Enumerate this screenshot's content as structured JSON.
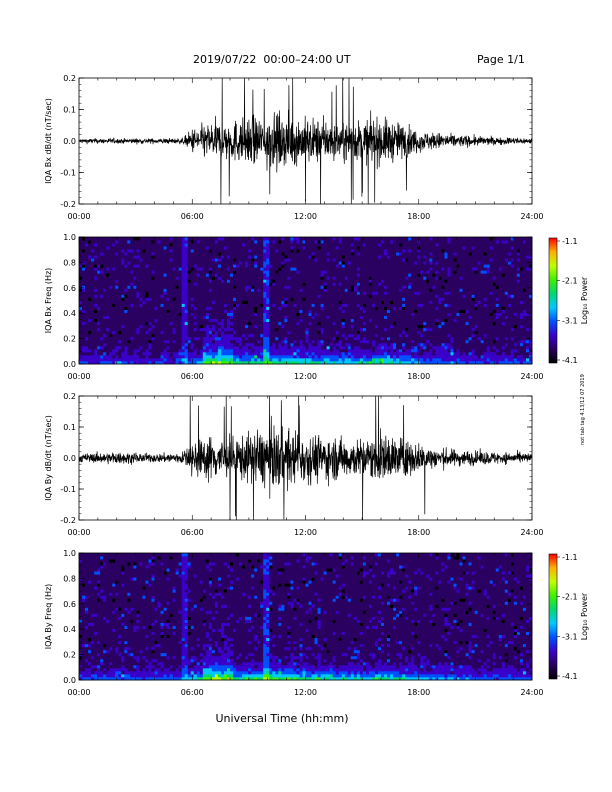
{
  "header": {
    "title": "2019/07/22  00:00–24:00 UT",
    "page": "Page 1/1"
  },
  "footer_xlabel": "Universal Time (hh:mm)",
  "side_note": "not tab tag 4.13/12 07 2019",
  "time_ticks": [
    "00:00",
    "06:00",
    "12:00",
    "18:00",
    "24:00"
  ],
  "colorbar": {
    "label": "Log₁₀ Power",
    "ticks": [
      "-1.1",
      "-2.1",
      "-3.1",
      "-4.1"
    ],
    "range": [
      -4.1,
      -1.1
    ],
    "colors": [
      "#000000",
      "#2a0060",
      "#3a00c8",
      "#0050ff",
      "#00c8ff",
      "#00d870",
      "#40f000",
      "#c0ff00",
      "#ffb000",
      "#ff0000"
    ]
  },
  "chart_data": [
    {
      "type": "line",
      "id": "bx_dbdt",
      "ylabel": "IQA Bx dB/dt (nT/sec)",
      "ylim": [
        -0.2,
        0.2
      ],
      "yticks": [
        "0.2",
        "0.1",
        "0.0",
        "-0.1",
        "-0.2"
      ],
      "xlim": [
        "00:00",
        "24:00"
      ],
      "envelope": {
        "time_h": [
          0,
          2,
          4,
          5.5,
          6,
          7,
          8,
          9,
          10,
          11,
          12,
          13,
          14,
          15,
          16,
          17,
          18,
          19,
          20,
          22,
          24
        ],
        "amplitude": [
          0.012,
          0.012,
          0.012,
          0.014,
          0.06,
          0.09,
          0.1,
          0.11,
          0.13,
          0.12,
          0.11,
          0.1,
          0.09,
          0.1,
          0.11,
          0.09,
          0.05,
          0.04,
          0.03,
          0.018,
          0.015
        ]
      }
    },
    {
      "type": "heatmap",
      "id": "bx_spectrogram",
      "ylabel": "IQA Bx Freq (Hz)",
      "ylim": [
        0.0,
        1.0
      ],
      "yticks": [
        "1.0",
        "0.8",
        "0.6",
        "0.4",
        "0.2",
        "0.0"
      ],
      "xlim": [
        "00:00",
        "24:00"
      ]
    },
    {
      "type": "line",
      "id": "by_dbdt",
      "ylabel": "IQA By dB/dt (nT/sec)",
      "ylim": [
        -0.2,
        0.2
      ],
      "yticks": [
        "0.2",
        "0.1",
        "0.0",
        "-0.1",
        "-0.2"
      ],
      "xlim": [
        "00:00",
        "24:00"
      ],
      "envelope": {
        "time_h": [
          0,
          2,
          4,
          5.5,
          6,
          7,
          8,
          9,
          10,
          11,
          12,
          13,
          14,
          15,
          16,
          17,
          18,
          19,
          20,
          22,
          24
        ],
        "amplitude": [
          0.02,
          0.03,
          0.02,
          0.03,
          0.08,
          0.11,
          0.1,
          0.12,
          0.15,
          0.14,
          0.12,
          0.11,
          0.1,
          0.09,
          0.12,
          0.1,
          0.07,
          0.05,
          0.04,
          0.03,
          0.025
        ]
      }
    },
    {
      "type": "heatmap",
      "id": "by_spectrogram",
      "ylabel": "IQA By Freq (Hz)",
      "ylim": [
        0.0,
        1.0
      ],
      "yticks": [
        "1.0",
        "0.8",
        "0.6",
        "0.4",
        "0.2",
        "0.0"
      ],
      "xlim": [
        "00:00",
        "24:00"
      ]
    }
  ]
}
